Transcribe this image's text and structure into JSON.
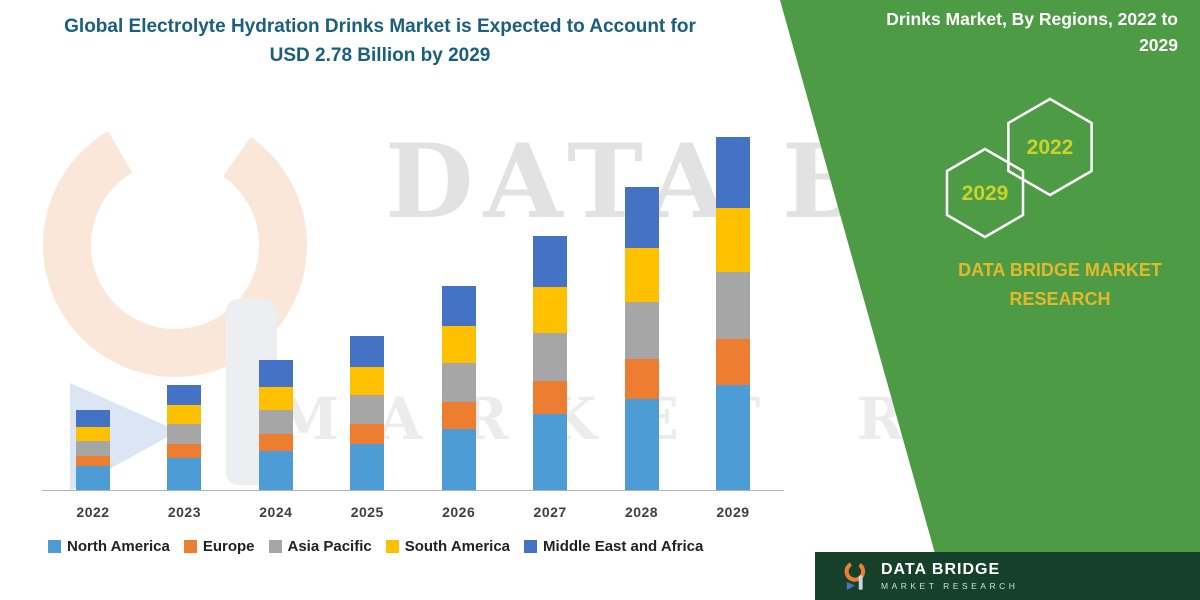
{
  "title": {
    "text": "Global Electrolyte Hydration Drinks Market is Expected to Account for USD 2.78 Billion by 2029"
  },
  "watermark": {
    "row1": "DATA BRIDGE",
    "row2": "MARKET RESEARCH"
  },
  "side_panel": {
    "heading": "Drinks Market, By Regions, 2022 to 2029",
    "hexagons": [
      {
        "year": "2029"
      },
      {
        "year": "2022"
      }
    ],
    "brand_text": "DATA BRIDGE MARKET RESEARCH",
    "panel_color": "#4E9B45",
    "year_color": "#C9D32A",
    "brand_color": "#E2B92B"
  },
  "footer": {
    "brand": "DATA BRIDGE",
    "sub": "MARKET RESEARCH",
    "bg": "#15402A"
  },
  "chart_data": {
    "type": "bar",
    "stacked": true,
    "title": "Global Electrolyte Hydration Drinks Market is Expected to Account for USD 2.78 Billion by 2029",
    "categories": [
      "2022",
      "2023",
      "2024",
      "2025",
      "2026",
      "2027",
      "2028",
      "2029"
    ],
    "unit": "USD Billion (estimated; no y-axis shown, scaled so 2029 total = 2.78)",
    "series": [
      {
        "name": "North America",
        "color": "#4E9CD5",
        "values": [
          0.19,
          0.25,
          0.31,
          0.36,
          0.48,
          0.6,
          0.72,
          0.83
        ]
      },
      {
        "name": "Europe",
        "color": "#ED7D31",
        "values": [
          0.08,
          0.11,
          0.13,
          0.16,
          0.21,
          0.26,
          0.31,
          0.36
        ]
      },
      {
        "name": "Asia Pacific",
        "color": "#A6A6A6",
        "values": [
          0.12,
          0.16,
          0.19,
          0.23,
          0.31,
          0.38,
          0.45,
          0.53
        ]
      },
      {
        "name": "South America",
        "color": "#FFC000",
        "values": [
          0.11,
          0.15,
          0.18,
          0.22,
          0.29,
          0.36,
          0.43,
          0.5
        ]
      },
      {
        "name": "Middle East and Africa",
        "color": "#4472C4",
        "values": [
          0.13,
          0.16,
          0.21,
          0.24,
          0.32,
          0.4,
          0.48,
          0.56
        ]
      }
    ],
    "totals": [
      0.63,
      0.83,
      1.02,
      1.21,
      1.61,
      2.0,
      2.39,
      2.78
    ],
    "xlabel": "",
    "ylabel": "",
    "grid": false,
    "legend_position": "bottom"
  }
}
